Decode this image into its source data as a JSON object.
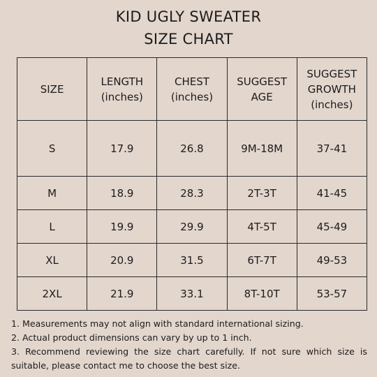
{
  "title": {
    "line1": "KID UGLY SWEATER",
    "line2": "SIZE CHART"
  },
  "table": {
    "headers": [
      [
        "SIZE"
      ],
      [
        "LENGTH",
        "(inches)"
      ],
      [
        "CHEST",
        "(inches)"
      ],
      [
        "SUGGEST",
        "AGE"
      ],
      [
        "SUGGEST",
        "GROWTH",
        "(inches)"
      ]
    ],
    "rows": [
      [
        "S",
        "17.9",
        "26.8",
        "9M-18M",
        "37-41"
      ],
      [
        "M",
        "18.9",
        "28.3",
        "2T-3T",
        "41-45"
      ],
      [
        "L",
        "19.9",
        "29.9",
        "4T-5T",
        "45-49"
      ],
      [
        "XL",
        "20.9",
        "31.5",
        "6T-7T",
        "49-53"
      ],
      [
        "2XL",
        "21.9",
        "33.1",
        "8T-10T",
        "53-57"
      ]
    ]
  },
  "notes": [
    "1. Measurements may not align with standard international sizing.",
    "2. Actual product dimensions can vary by up to 1 inch.",
    "3. Recommend reviewing the size chart carefully. If not sure which size is suitable, please contact me to choose the best size."
  ]
}
